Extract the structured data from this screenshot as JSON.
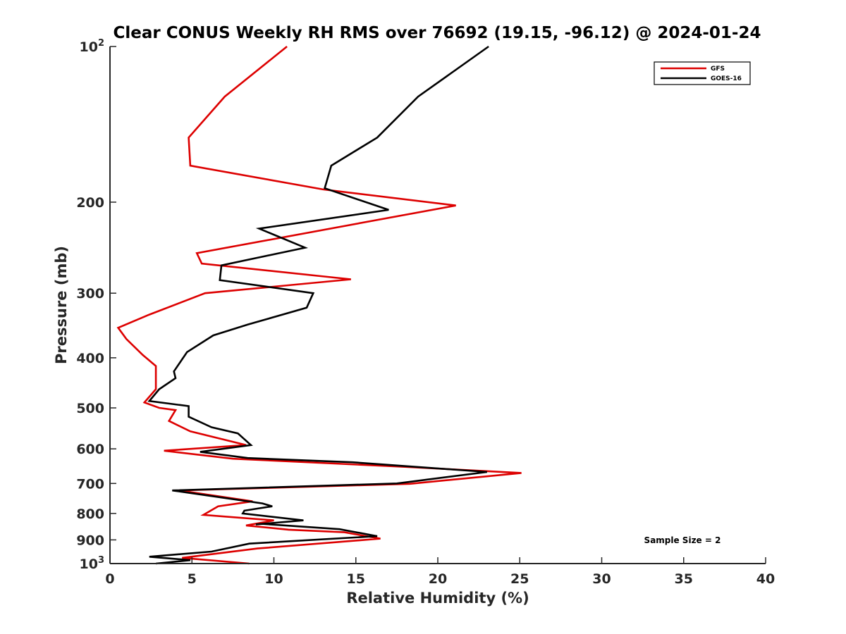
{
  "chart_data": {
    "type": "line",
    "title": "Clear CONUS Weekly RH RMS over 76692 (19.15, -96.12) @ 2024-01-24",
    "xlabel": "Relative Humidity (%)",
    "ylabel": "Pressure (mb)",
    "xlim": [
      0,
      40
    ],
    "ylim": [
      100,
      1000
    ],
    "yscale": "log",
    "y_reversed": true,
    "x_ticks": [
      0,
      5,
      10,
      15,
      20,
      25,
      30,
      35,
      40
    ],
    "x_tick_labels": [
      "0",
      "5",
      "10",
      "15",
      "20",
      "25",
      "30",
      "35",
      "40"
    ],
    "y_ticks": [
      100,
      200,
      300,
      400,
      500,
      600,
      700,
      800,
      900,
      1000
    ],
    "y_tick_labels": [
      {
        "base": "10",
        "exp": "2"
      },
      {
        "base": "200"
      },
      {
        "base": "300"
      },
      {
        "base": "400"
      },
      {
        "base": "500"
      },
      {
        "base": "600"
      },
      {
        "base": "700"
      },
      {
        "base": "800"
      },
      {
        "base": "900"
      },
      {
        "base": "10",
        "exp": "3"
      }
    ],
    "legend_position": "top-right",
    "annotation": "Sample Size = 2",
    "series": [
      {
        "name": "GFS",
        "color": "#dd0000",
        "points": [
          [
            10.8,
            100
          ],
          [
            7.0,
            125
          ],
          [
            4.8,
            150
          ],
          [
            4.9,
            170
          ],
          [
            13.0,
            189
          ],
          [
            21.1,
            203
          ],
          [
            5.3,
            251
          ],
          [
            5.6,
            263
          ],
          [
            14.7,
            282
          ],
          [
            5.8,
            300
          ],
          [
            2.4,
            330
          ],
          [
            0.5,
            350
          ],
          [
            1.0,
            368
          ],
          [
            2.0,
            395
          ],
          [
            2.8,
            415
          ],
          [
            2.8,
            460
          ],
          [
            2.1,
            488
          ],
          [
            3.0,
            500
          ],
          [
            4.0,
            505
          ],
          [
            3.6,
            530
          ],
          [
            4.9,
            555
          ],
          [
            8.3,
            590
          ],
          [
            3.3,
            605
          ],
          [
            7.5,
            627
          ],
          [
            18.0,
            650
          ],
          [
            25.1,
            668
          ],
          [
            18.3,
            701
          ],
          [
            4.2,
            722
          ],
          [
            8.7,
            758
          ],
          [
            6.6,
            775
          ],
          [
            5.7,
            805
          ],
          [
            10.0,
            825
          ],
          [
            8.3,
            844
          ],
          [
            10.9,
            860
          ],
          [
            14.3,
            870
          ],
          [
            16.5,
            895
          ],
          [
            9.0,
            935
          ],
          [
            4.4,
            975
          ],
          [
            8.5,
            1000
          ]
        ]
      },
      {
        "name": "GOES-16",
        "color": "#000000",
        "points": [
          [
            23.1,
            100
          ],
          [
            18.8,
            125
          ],
          [
            16.3,
            150
          ],
          [
            13.5,
            170
          ],
          [
            13.1,
            188
          ],
          [
            17.0,
            207
          ],
          [
            9.1,
            225
          ],
          [
            11.9,
            245
          ],
          [
            6.8,
            265
          ],
          [
            6.7,
            283
          ],
          [
            12.4,
            300
          ],
          [
            12.0,
            320
          ],
          [
            8.4,
            345
          ],
          [
            6.3,
            362
          ],
          [
            4.7,
            390
          ],
          [
            3.9,
            425
          ],
          [
            4.0,
            438
          ],
          [
            3.0,
            460
          ],
          [
            2.4,
            485
          ],
          [
            4.8,
            496
          ],
          [
            4.8,
            520
          ],
          [
            6.2,
            545
          ],
          [
            7.8,
            560
          ],
          [
            8.6,
            590
          ],
          [
            5.5,
            608
          ],
          [
            8.4,
            625
          ],
          [
            14.8,
            637
          ],
          [
            23.0,
            665
          ],
          [
            17.5,
            700
          ],
          [
            3.8,
            722
          ],
          [
            9.3,
            765
          ],
          [
            9.9,
            775
          ],
          [
            8.2,
            790
          ],
          [
            8.1,
            800
          ],
          [
            11.8,
            825
          ],
          [
            8.9,
            840
          ],
          [
            9.3,
            838
          ],
          [
            14.0,
            858
          ],
          [
            16.3,
            885
          ],
          [
            8.5,
            915
          ],
          [
            6.2,
            948
          ],
          [
            2.4,
            970
          ],
          [
            4.9,
            985
          ],
          [
            2.8,
            1000
          ]
        ]
      }
    ]
  }
}
